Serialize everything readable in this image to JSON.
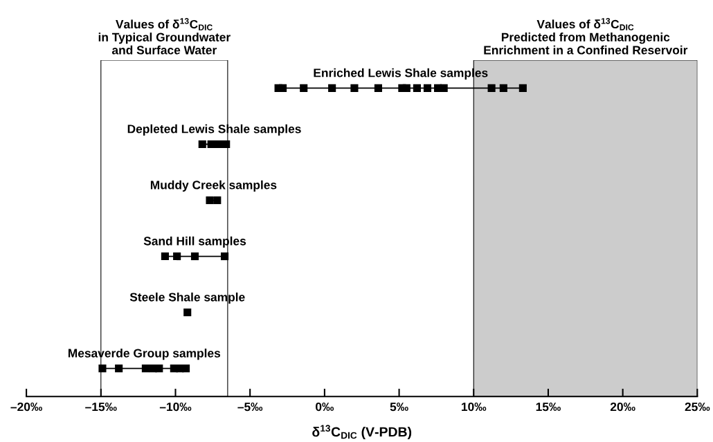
{
  "chart_data": {
    "type": "scatter",
    "orientation": "horizontal",
    "marker": "square",
    "line_style": "solid",
    "tick_labels": "x",
    "grid": false,
    "legend": false,
    "xlabel": "δ$^{13}$C$_{DIC}$ (V-PDB)",
    "xlim": [
      -20,
      25
    ],
    "xticks": [
      {
        "value": -20,
        "label": "–20‰"
      },
      {
        "value": -15,
        "label": "–15‰"
      },
      {
        "value": -10,
        "label": "–10‰"
      },
      {
        "value": -5,
        "label": "–5‰"
      },
      {
        "value": 0,
        "label": "0‰"
      },
      {
        "value": 5,
        "label": "5‰"
      },
      {
        "value": 10,
        "label": "10‰"
      },
      {
        "value": 15,
        "label": "15‰"
      },
      {
        "value": 20,
        "label": "20‰"
      },
      {
        "value": 25,
        "label": "25‰"
      }
    ],
    "categories": [
      "Enriched Lewis Shale samples",
      "Depleted Lewis Shale samples",
      "Muddy Creek samples",
      "Sand Hill samples",
      "Steele Shale sample",
      "Mesaverde Group samples"
    ],
    "series": [
      {
        "color": "#000000",
        "x": [
          "Enriched Lewis Shale samples",
          "Enriched Lewis Shale samples",
          "Enriched Lewis Shale samples",
          "Enriched Lewis Shale samples",
          "Enriched Lewis Shale samples",
          "Enriched Lewis Shale samples",
          "Enriched Lewis Shale samples",
          "Enriched Lewis Shale samples",
          "Enriched Lewis Shale samples",
          "Enriched Lewis Shale samples",
          "Enriched Lewis Shale samples",
          "Enriched Lewis Shale samples",
          "Enriched Lewis Shale samples",
          "Enriched Lewis Shale samples",
          "Enriched Lewis Shale samples"
        ],
        "values": [
          -3.1,
          -2.8,
          -1.4,
          0.5,
          2.0,
          3.6,
          5.2,
          5.5,
          6.2,
          6.9,
          7.6,
          8.0,
          11.2,
          12.0,
          13.3
        ]
      },
      {
        "color": "#000000",
        "x": [
          "Depleted Lewis Shale samples",
          "Depleted Lewis Shale samples",
          "Depleted Lewis Shale samples",
          "Depleted Lewis Shale samples",
          "Depleted Lewis Shale samples"
        ],
        "values": [
          -8.2,
          -7.6,
          -7.3,
          -6.9,
          -6.6
        ]
      },
      {
        "color": "#000000",
        "x": [
          "Muddy Creek samples",
          "Muddy Creek samples"
        ],
        "values": [
          -7.7,
          -7.2
        ]
      },
      {
        "color": "#000000",
        "x": [
          "Sand Hill samples",
          "Sand Hill samples",
          "Sand Hill samples",
          "Sand Hill samples"
        ],
        "values": [
          -10.7,
          -9.9,
          -8.7,
          -6.7
        ]
      },
      {
        "color": "#000000",
        "x": [
          "Steele Shale sample"
        ],
        "values": [
          -9.2
        ]
      },
      {
        "color": "#000000",
        "x": [
          "Mesaverde Group samples",
          "Mesaverde Group samples",
          "Mesaverde Group samples",
          "Mesaverde Group samples",
          "Mesaverde Group samples",
          "Mesaverde Group samples",
          "Mesaverde Group samples",
          "Mesaverde Group samples"
        ],
        "values": [
          -14.9,
          -13.8,
          -12.0,
          -11.5,
          -11.1,
          -10.1,
          -9.7,
          -9.3
        ]
      }
    ],
    "bands": [
      {
        "axis": "x",
        "from": -15,
        "to": -6.5,
        "color": "#ffffff",
        "label": "Values of δ$^{13}$C$_{DIC}$\nin Typical Groundwater\nand Surface Water"
      },
      {
        "axis": "x",
        "from": 10,
        "to": 25,
        "color": "#cccccc",
        "label": "Values of δ$^{13}$C$_{DIC}$\nPredicted from Methanogenic\nEnrichment in a Confined Reservoir"
      }
    ]
  }
}
